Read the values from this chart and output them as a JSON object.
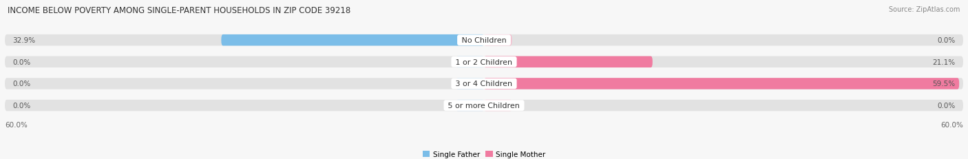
{
  "title": "INCOME BELOW POVERTY AMONG SINGLE-PARENT HOUSEHOLDS IN ZIP CODE 39218",
  "source": "Source: ZipAtlas.com",
  "categories": [
    "No Children",
    "1 or 2 Children",
    "3 or 4 Children",
    "5 or more Children"
  ],
  "father_values": [
    32.9,
    0.0,
    0.0,
    0.0
  ],
  "mother_values": [
    0.0,
    21.1,
    59.5,
    0.0
  ],
  "father_color": "#7BBDE8",
  "mother_color": "#F07BA0",
  "father_label": "Single Father",
  "mother_label": "Single Mother",
  "axis_max": 60.0,
  "axis_label_left": "60.0%",
  "axis_label_right": "60.0%",
  "background_color": "#f7f7f7",
  "bar_background": "#e2e2e2",
  "stub_size": 3.5,
  "title_fontsize": 8.5,
  "label_fontsize": 7.5,
  "cat_fontsize": 8.0,
  "tick_fontsize": 7.5,
  "source_fontsize": 7.0
}
